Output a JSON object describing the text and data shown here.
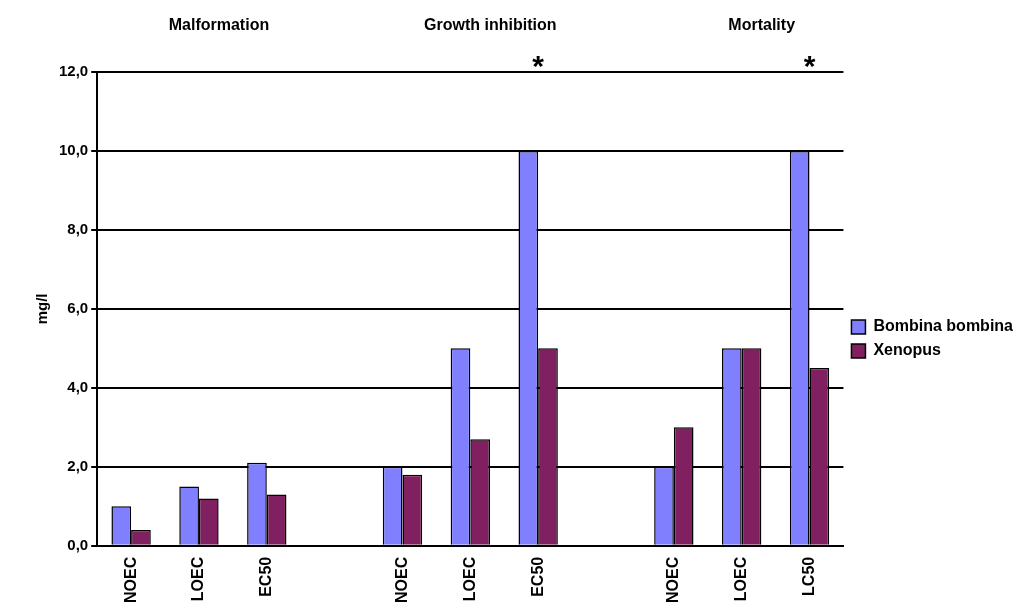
{
  "chart_data": {
    "type": "bar",
    "ylabel": "mg/l",
    "categories": [
      "NOEC",
      "LOEC",
      "EC50",
      null,
      "NOEC",
      "LOEC",
      "EC50",
      null,
      "NOEC",
      "LOEC",
      "LC50"
    ],
    "series": [
      {
        "name": "Bombina bombina",
        "color": "#8080ff",
        "values": [
          1.0,
          1.5,
          2.1,
          null,
          2.0,
          5.0,
          10.0,
          null,
          2.0,
          5.0,
          10.0
        ]
      },
      {
        "name": "Xenopus",
        "color": "#802060",
        "values": [
          0.4,
          1.2,
          1.3,
          null,
          1.8,
          2.7,
          5.0,
          null,
          3.0,
          5.0,
          4.5
        ]
      }
    ],
    "ylim": [
      0,
      12
    ],
    "yticks": [
      {
        "value": 0,
        "label": "0,0"
      },
      {
        "value": 2,
        "label": "2,0"
      },
      {
        "value": 4,
        "label": "4,0"
      },
      {
        "value": 6,
        "label": "6,0"
      },
      {
        "value": 8,
        "label": "8,0"
      },
      {
        "value": 10,
        "label": "10,0"
      },
      {
        "value": 12,
        "label": "12,0"
      }
    ],
    "annotations": [
      "Malformation",
      "Growth inhibition",
      "Mortality",
      "*",
      "*"
    ],
    "grid": "y",
    "legend": "right"
  }
}
